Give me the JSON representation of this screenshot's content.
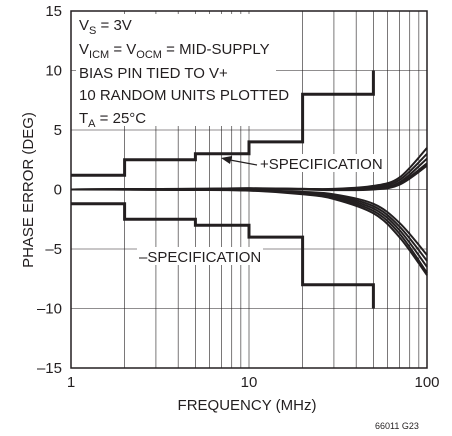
{
  "chart_data": {
    "type": "line",
    "xlabel": "FREQUENCY (MHz)",
    "ylabel": "PHASE ERROR (DEG)",
    "xscale": "log",
    "xlim": [
      1,
      100
    ],
    "ylim": [
      -15,
      15
    ],
    "x_ticks": [
      "1",
      "10",
      "100"
    ],
    "y_ticks": [
      "15",
      "10",
      "5",
      "0",
      "–5",
      "–10",
      "–15"
    ],
    "grid": "on",
    "conditions": {
      "vs_main": "V",
      "vs_sub": "S",
      "vs_rest": " = 3V",
      "vicm_main1": "V",
      "vicm_sub1": "ICM",
      "vicm_mid": " = V",
      "vicm_sub2": "OCM",
      "vicm_rest": " = MID-SUPPLY",
      "bias": "BIAS PIN TIED TO V+",
      "units": "10 RANDOM UNITS PLOTTED",
      "ta_main": "T",
      "ta_sub": "A",
      "ta_rest": " = 25°C"
    },
    "annotations": {
      "upper_spec": "+SPECIFICATION",
      "lower_spec": "–SPECIFICATION"
    },
    "figure_code": "66011 G23",
    "spec_limits": {
      "upper": [
        {
          "x": 1,
          "y": 1.2
        },
        {
          "x": 2,
          "y": 1.2
        },
        {
          "x": 2,
          "y": 2.5
        },
        {
          "x": 5,
          "y": 2.5
        },
        {
          "x": 5,
          "y": 3
        },
        {
          "x": 10,
          "y": 3
        },
        {
          "x": 10,
          "y": 4
        },
        {
          "x": 20,
          "y": 4
        },
        {
          "x": 20,
          "y": 8
        },
        {
          "x": 50,
          "y": 8
        },
        {
          "x": 50,
          "y": 10
        }
      ],
      "lower": [
        {
          "x": 1,
          "y": -1.2
        },
        {
          "x": 2,
          "y": -1.2
        },
        {
          "x": 2,
          "y": -2.5
        },
        {
          "x": 5,
          "y": -2.5
        },
        {
          "x": 5,
          "y": -3
        },
        {
          "x": 10,
          "y": -3
        },
        {
          "x": 10,
          "y": -4
        },
        {
          "x": 20,
          "y": -4
        },
        {
          "x": 20,
          "y": -8
        },
        {
          "x": 50,
          "y": -8
        },
        {
          "x": 50,
          "y": -10
        }
      ]
    },
    "series": [
      {
        "x": [
          1,
          2,
          5,
          10,
          20,
          30,
          50,
          70,
          100
        ],
        "y": [
          0,
          0.03,
          0.05,
          0.1,
          0.05,
          0.05,
          0.3,
          1.0,
          3.5
        ]
      },
      {
        "x": [
          1,
          2,
          5,
          10,
          20,
          30,
          50,
          70,
          100
        ],
        "y": [
          0,
          0.03,
          0.05,
          0.1,
          0.05,
          0.02,
          0.2,
          0.8,
          3.0
        ]
      },
      {
        "x": [
          1,
          2,
          5,
          10,
          20,
          30,
          50,
          70,
          100
        ],
        "y": [
          0,
          0.02,
          0.05,
          0.08,
          0.03,
          0.0,
          0.1,
          0.6,
          2.6
        ]
      },
      {
        "x": [
          1,
          2,
          5,
          10,
          20,
          30,
          50,
          70,
          100
        ],
        "y": [
          0,
          0.02,
          0.04,
          0.07,
          0.02,
          -0.02,
          0.05,
          0.5,
          2.2
        ]
      },
      {
        "x": [
          1,
          2,
          5,
          10,
          20,
          30,
          50,
          70,
          100
        ],
        "y": [
          0,
          0.02,
          0.04,
          0.06,
          0.0,
          -0.05,
          0.0,
          0.4,
          2.0
        ]
      },
      {
        "x": [
          1,
          2,
          5,
          10,
          20,
          30,
          50,
          70,
          100
        ],
        "y": [
          0,
          0.0,
          -0.02,
          -0.05,
          -0.2,
          -0.4,
          -1.2,
          -2.8,
          -5.5
        ]
      },
      {
        "x": [
          1,
          2,
          5,
          10,
          20,
          30,
          50,
          70,
          100
        ],
        "y": [
          0,
          0.0,
          -0.02,
          -0.06,
          -0.25,
          -0.5,
          -1.4,
          -3.1,
          -6.0
        ]
      },
      {
        "x": [
          1,
          2,
          5,
          10,
          20,
          30,
          50,
          70,
          100
        ],
        "y": [
          0,
          0.0,
          -0.03,
          -0.07,
          -0.3,
          -0.6,
          -1.6,
          -3.4,
          -6.5
        ]
      },
      {
        "x": [
          1,
          2,
          5,
          10,
          20,
          30,
          50,
          70,
          100
        ],
        "y": [
          0,
          -0.01,
          -0.03,
          -0.08,
          -0.35,
          -0.7,
          -1.8,
          -3.7,
          -7.0
        ]
      },
      {
        "x": [
          1,
          2,
          5,
          10,
          20,
          30,
          50,
          70,
          100
        ],
        "y": [
          0,
          -0.01,
          -0.04,
          -0.09,
          -0.4,
          -0.8,
          -2.0,
          -4.0,
          -7.2
        ]
      }
    ]
  }
}
